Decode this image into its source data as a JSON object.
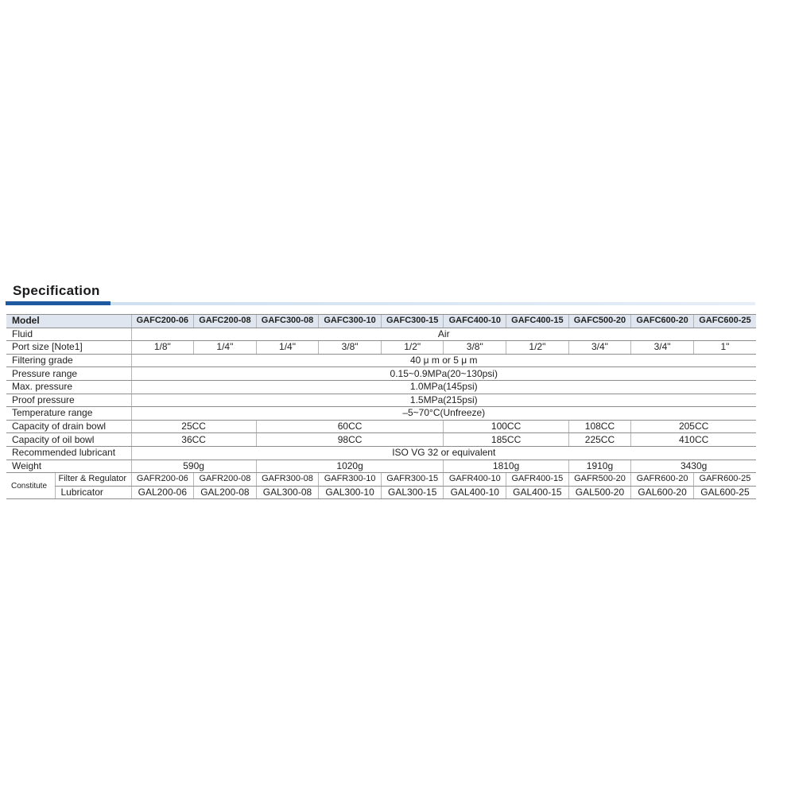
{
  "title": "Specification",
  "colors": {
    "accent": "#1f5aa0",
    "header_bg": "#dfe6ef"
  },
  "table": {
    "header_label": "Model",
    "models": [
      "GAFC200-06",
      "GAFC200-08",
      "GAFC300-08",
      "GAFC300-10",
      "GAFC300-15",
      "GAFC400-10",
      "GAFC400-15",
      "GAFC500-20",
      "GAFC600-20",
      "GAFC600-25"
    ],
    "rows": [
      {
        "label": "Fluid",
        "cells": [
          {
            "text": "Air",
            "span": 10
          }
        ]
      },
      {
        "label": "Port size  [Note1]",
        "cells": [
          {
            "text": "1/8\"",
            "span": 1
          },
          {
            "text": "1/4\"",
            "span": 1
          },
          {
            "text": "1/4\"",
            "span": 1
          },
          {
            "text": "3/8\"",
            "span": 1
          },
          {
            "text": "1/2\"",
            "span": 1
          },
          {
            "text": "3/8\"",
            "span": 1
          },
          {
            "text": "1/2\"",
            "span": 1
          },
          {
            "text": "3/4\"",
            "span": 1
          },
          {
            "text": "3/4\"",
            "span": 1
          },
          {
            "text": "1\"",
            "span": 1
          }
        ]
      },
      {
        "label": "Filtering grade",
        "cells": [
          {
            "text": "40 μ m or 5 μ m",
            "span": 10
          }
        ]
      },
      {
        "label": "Pressure range",
        "cells": [
          {
            "text": "0.15~0.9MPa(20~130psi)",
            "span": 10
          }
        ]
      },
      {
        "label": "Max. pressure",
        "cells": [
          {
            "text": "1.0MPa(145psi)",
            "span": 10
          }
        ]
      },
      {
        "label": "Proof pressure",
        "cells": [
          {
            "text": "1.5MPa(215psi)",
            "span": 10
          }
        ]
      },
      {
        "label": "Temperature range",
        "cells": [
          {
            "text": "–5~70°C(Unfreeze)",
            "span": 10
          }
        ]
      },
      {
        "label": "Capacity of drain bowl",
        "cells": [
          {
            "text": "25CC",
            "span": 2
          },
          {
            "text": "60CC",
            "span": 3
          },
          {
            "text": "100CC",
            "span": 2
          },
          {
            "text": "108CC",
            "span": 1
          },
          {
            "text": "205CC",
            "span": 2
          }
        ]
      },
      {
        "label": "Capacity of oil bowl",
        "cells": [
          {
            "text": "36CC",
            "span": 2
          },
          {
            "text": "98CC",
            "span": 3
          },
          {
            "text": "185CC",
            "span": 2
          },
          {
            "text": "225CC",
            "span": 1
          },
          {
            "text": "410CC",
            "span": 2
          }
        ]
      },
      {
        "label": "Recommended lubricant",
        "cells": [
          {
            "text": "ISO VG 32 or equivalent",
            "span": 10
          }
        ]
      },
      {
        "label": "Weight",
        "cells": [
          {
            "text": "590g",
            "span": 2
          },
          {
            "text": "1020g",
            "span": 3
          },
          {
            "text": "1810g",
            "span": 2
          },
          {
            "text": "1910g",
            "span": 1
          },
          {
            "text": "3430g",
            "span": 2
          }
        ]
      }
    ],
    "constitute": {
      "label": "Constitute",
      "filter_regulator": {
        "label": "Filter & Regulator",
        "models": [
          "GAFR200-06",
          "GAFR200-08",
          "GAFR300-08",
          "GAFR300-10",
          "GAFR300-15",
          "GAFR400-10",
          "GAFR400-15",
          "GAFR500-20",
          "GAFR600-20",
          "GAFR600-25"
        ]
      },
      "lubricator": {
        "label": "Lubricator",
        "models": [
          "GAL200-06",
          "GAL200-08",
          "GAL300-08",
          "GAL300-10",
          "GAL300-15",
          "GAL400-10",
          "GAL400-15",
          "GAL500-20",
          "GAL600-20",
          "GAL600-25"
        ]
      }
    }
  }
}
